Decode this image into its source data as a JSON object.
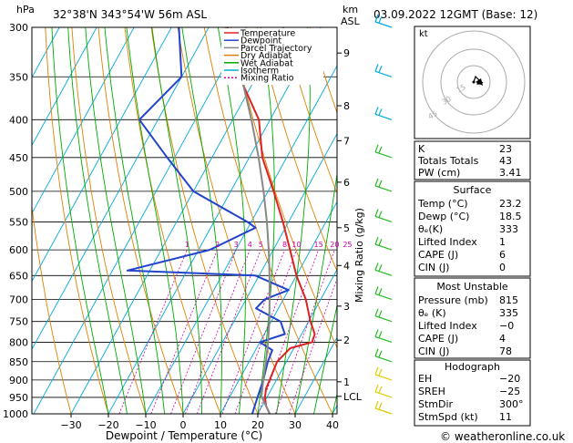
{
  "header": {
    "hpa": "hPa",
    "location": "32°38'N  343°54'W  56m  ASL",
    "km": "km",
    "asl": "ASL",
    "datetime": "03.09.2022  12GMT  (Base: 12)"
  },
  "chart_data": {
    "type": "line",
    "title": "Skew-T log-P diagram",
    "xlabel": "Dewpoint / Temperature (°C)",
    "ylabel_right": "Mixing Ratio (g/kg)",
    "pressure_levels": [
      300,
      350,
      400,
      450,
      500,
      550,
      600,
      650,
      700,
      750,
      800,
      850,
      900,
      950,
      1000
    ],
    "pressure_labels": [
      "300",
      "350",
      "400",
      "450",
      "500",
      "550",
      "600",
      "650",
      "700",
      "750",
      "800",
      "850",
      "900",
      "950",
      "1000"
    ],
    "temp_ticks": [
      -30,
      -20,
      -10,
      0,
      10,
      20,
      30,
      40
    ],
    "temp_tick_labels": [
      "−30",
      "−20",
      "−10",
      "0",
      "10",
      "20",
      "30",
      "40"
    ],
    "km_ticks": [
      {
        "p": 325,
        "label": "9"
      },
      {
        "p": 383,
        "label": "8"
      },
      {
        "p": 427,
        "label": "7"
      },
      {
        "p": 486,
        "label": "6"
      },
      {
        "p": 560,
        "label": "5"
      },
      {
        "p": 630,
        "label": "4"
      },
      {
        "p": 715,
        "label": "3"
      },
      {
        "p": 795,
        "label": "2"
      },
      {
        "p": 905,
        "label": "1"
      },
      {
        "p": 947,
        "label": "LCL"
      }
    ],
    "mixing_ratio_labels": [
      {
        "w": 1,
        "label": "1"
      },
      {
        "w": 2,
        "label": "2"
      },
      {
        "w": 3,
        "label": "3"
      },
      {
        "w": 4,
        "label": "4"
      },
      {
        "w": 5,
        "label": "5"
      },
      {
        "w": 8,
        "label": "8"
      },
      {
        "w": 10,
        "label": "10"
      },
      {
        "w": 15,
        "label": "15"
      },
      {
        "w": 20,
        "label": "20"
      },
      {
        "w": 25,
        "label": "25"
      }
    ],
    "legend": [
      {
        "name": "Temperature",
        "color": "#dd2222",
        "dash": ""
      },
      {
        "name": "Dewpoint",
        "color": "#2244cc",
        "dash": ""
      },
      {
        "name": "Parcel Trajectory",
        "color": "#888888",
        "dash": ""
      },
      {
        "name": "Dry Adiabat",
        "color": "#e08000",
        "dash": ""
      },
      {
        "name": "Wet Adiabat",
        "color": "#00aa00",
        "dash": ""
      },
      {
        "name": "Isotherm",
        "color": "#00aadd",
        "dash": ""
      },
      {
        "name": "Mixing Ratio",
        "color": "#cc00aa",
        "dash": "2,2"
      }
    ],
    "series": [
      {
        "name": "Temperature",
        "p": [
          1000,
          975,
          950,
          925,
          900,
          850,
          815,
          800,
          780,
          750,
          700,
          650,
          600,
          550,
          500,
          450,
          400,
          350,
          300
        ],
        "t": [
          23.2,
          21.0,
          19.5,
          18.5,
          18.2,
          17.5,
          19.0,
          24.0,
          23.5,
          20.5,
          16.0,
          10.0,
          4.5,
          -1.5,
          -8.5,
          -16.5,
          -23.0,
          -34.5,
          -45.0
        ]
      },
      {
        "name": "Dewpoint",
        "p": [
          1000,
          975,
          950,
          925,
          900,
          850,
          820,
          800,
          780,
          750,
          720,
          700,
          680,
          650,
          640,
          600,
          560,
          550,
          500,
          450,
          400,
          350,
          300
        ],
        "t": [
          18.5,
          18.0,
          17.5,
          17.0,
          16.5,
          15.0,
          14.5,
          10.0,
          15.5,
          12.5,
          4.0,
          5.0,
          10.0,
          -1.0,
          -36.0,
          -17.0,
          -8.0,
          -11.0,
          -30.0,
          -42.0,
          -55.0,
          -50.0,
          -58.0
        ]
      },
      {
        "name": "Parcel Trajectory",
        "p": [
          1000,
          947,
          900,
          850,
          800,
          750,
          700,
          650,
          600,
          550,
          500,
          450,
          400,
          350,
          300
        ],
        "t": [
          23.2,
          18.4,
          16.5,
          14.5,
          12.2,
          9.5,
          6.3,
          2.8,
          -1.2,
          -5.8,
          -11.2,
          -17.5,
          -25.0,
          -34.0,
          -45.5
        ]
      }
    ],
    "wind_barb_levels": [
      300,
      350,
      400,
      450,
      500,
      550,
      600,
      650,
      700,
      750,
      800,
      850,
      900,
      950,
      1000
    ]
  },
  "hodograph": {
    "unit": "kt",
    "ring_labels": [
      "15",
      "30",
      "45"
    ]
  },
  "table1": [
    {
      "label": "K",
      "value": "23"
    },
    {
      "label": "Totals Totals",
      "value": "43"
    },
    {
      "label": "PW (cm)",
      "value": "3.41"
    }
  ],
  "surface": {
    "title": "Surface",
    "rows": [
      {
        "label": "Temp (°C)",
        "value": "23.2"
      },
      {
        "label": "Dewp (°C)",
        "value": "18.5"
      },
      {
        "label": "θₑ(K)",
        "value": "333"
      },
      {
        "label": "Lifted Index",
        "value": "1"
      },
      {
        "label": "CAPE (J)",
        "value": "6"
      },
      {
        "label": "CIN (J)",
        "value": "0"
      }
    ]
  },
  "unstable": {
    "title": "Most Unstable",
    "rows": [
      {
        "label": "Pressure (mb)",
        "value": "815"
      },
      {
        "label": "θₑ (K)",
        "value": "335"
      },
      {
        "label": "Lifted Index",
        "value": "−0"
      },
      {
        "label": "CAPE (J)",
        "value": "4"
      },
      {
        "label": "CIN (J)",
        "value": "78"
      }
    ]
  },
  "hodo_table": {
    "title": "Hodograph",
    "rows": [
      {
        "label": "EH",
        "value": "−20"
      },
      {
        "label": "SREH",
        "value": "−25"
      },
      {
        "label": "StmDir",
        "value": "300°"
      },
      {
        "label": "StmSpd (kt)",
        "value": "11"
      }
    ]
  },
  "footer": {
    "copyright": "© weatheronline.co.uk"
  }
}
